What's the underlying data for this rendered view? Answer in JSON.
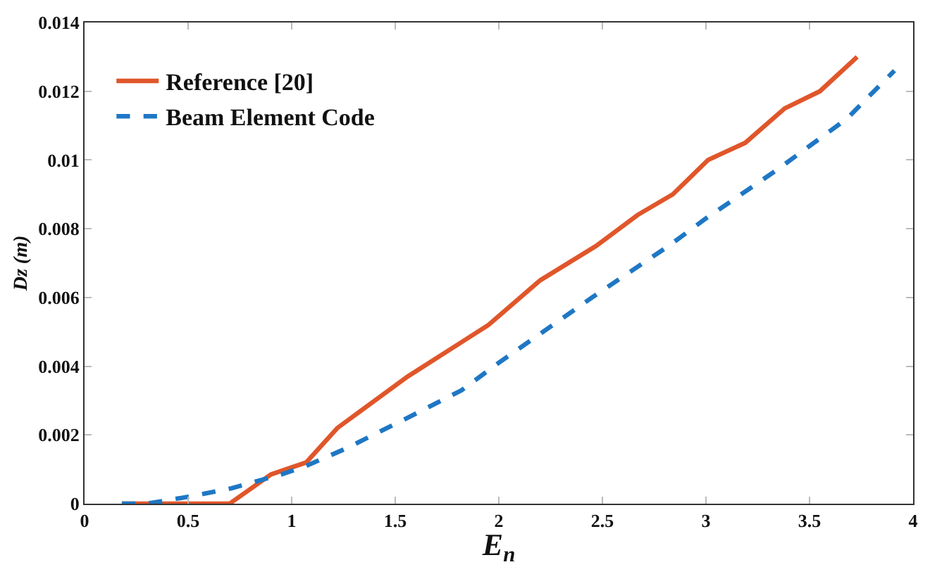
{
  "chart_data": {
    "type": "line",
    "xlabel": "E$_{n}$",
    "ylabel": "Dz (m)",
    "xlim": [
      0,
      4
    ],
    "xticks": [
      0,
      0.5,
      1,
      1.5,
      2,
      2.5,
      3,
      3.5,
      4
    ],
    "ylim": [
      0,
      0.014
    ],
    "yticks": [
      0,
      0.002,
      0.004,
      0.006,
      0.008,
      0.01,
      0.012,
      0.014
    ],
    "legend": "top left",
    "marker": "none",
    "series": [
      {
        "name": "Reference [20]",
        "color": "#e0562a",
        "line_style": "solid",
        "x": [
          0.18,
          0.7,
          0.9,
          1.07,
          1.22,
          1.56,
          1.82,
          1.95,
          2.2,
          2.47,
          2.67,
          2.84,
          3.01,
          3.19,
          3.38,
          3.55,
          3.73
        ],
        "values": [
          0,
          0,
          0.00085,
          0.0012,
          0.0022,
          0.0037,
          0.0047,
          0.0052,
          0.0065,
          0.0075,
          0.0084,
          0.009,
          0.01,
          0.0105,
          0.0115,
          0.012,
          0.013
        ]
      },
      {
        "name": "Beam Element Code",
        "color": "#1f77c4",
        "line_style": "dashed",
        "x": [
          0.18,
          0.3,
          0.5,
          0.71,
          0.95,
          1.07,
          1.26,
          1.56,
          1.82,
          2.0,
          2.45,
          2.82,
          3.0,
          3.34,
          3.68,
          3.91
        ],
        "values": [
          0,
          0,
          0.0002,
          0.00045,
          0.00085,
          0.0011,
          0.0016,
          0.0025,
          0.0033,
          0.0041,
          0.006,
          0.0075,
          0.0083,
          0.0097,
          0.0112,
          0.0126
        ]
      }
    ]
  }
}
